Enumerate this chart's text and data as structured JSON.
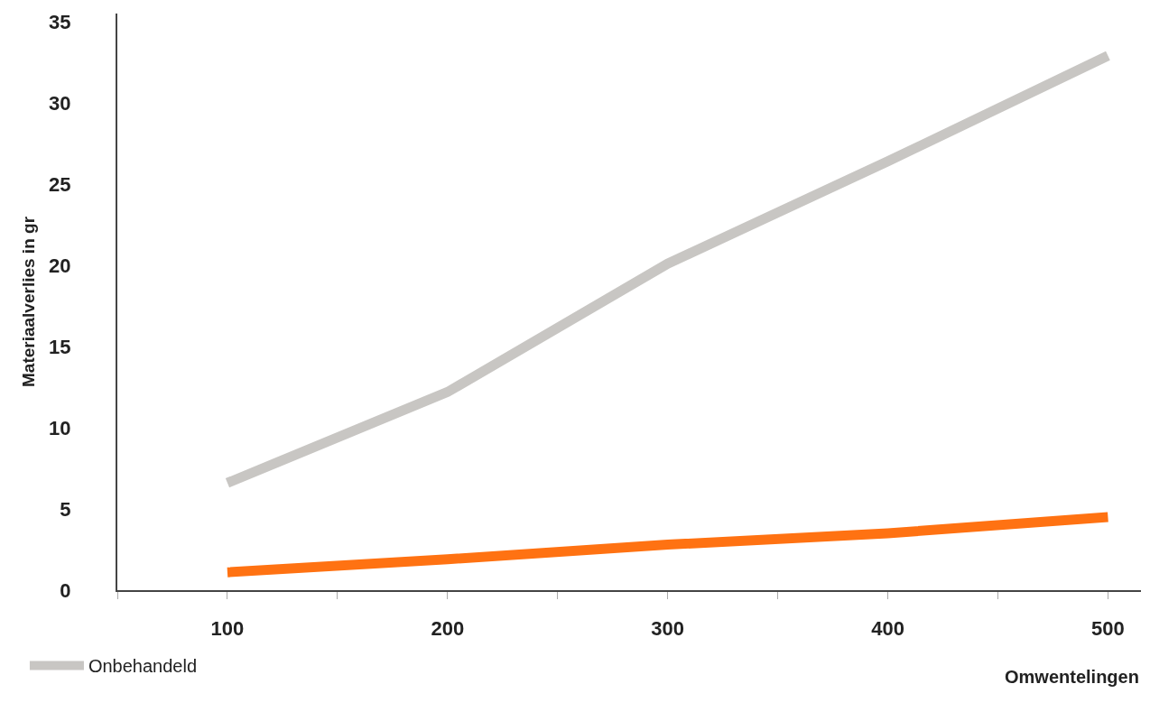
{
  "chart_data": {
    "type": "line",
    "xlabel": "Omwentelingen",
    "ylabel": "Materiaalverlies in gr",
    "x": [
      100,
      200,
      300,
      400,
      500
    ],
    "series": [
      {
        "name": "Onbehandeld",
        "color": "#c8c6c3",
        "values": [
          6.6,
          12.2,
          20.1,
          26.4,
          32.9
        ]
      },
      {
        "color": "#ff7212",
        "values": [
          1.1,
          1.9,
          2.8,
          3.5,
          4.5
        ]
      }
    ],
    "xlim": [
      50,
      515
    ],
    "xticks": [
      {
        "value": 50,
        "label": null
      },
      100,
      {
        "value": 150,
        "label": null
      },
      200,
      {
        "value": 250,
        "label": null
      },
      300,
      {
        "value": 350,
        "label": null
      },
      400,
      {
        "value": 450,
        "label": null
      },
      500
    ],
    "ylim": [
      0,
      35.5
    ],
    "yticks": [
      0,
      5,
      10,
      15,
      20,
      25,
      30,
      35
    ],
    "grid": false,
    "legend": "bottom left",
    "marker": "none",
    "line_style": "solid"
  }
}
